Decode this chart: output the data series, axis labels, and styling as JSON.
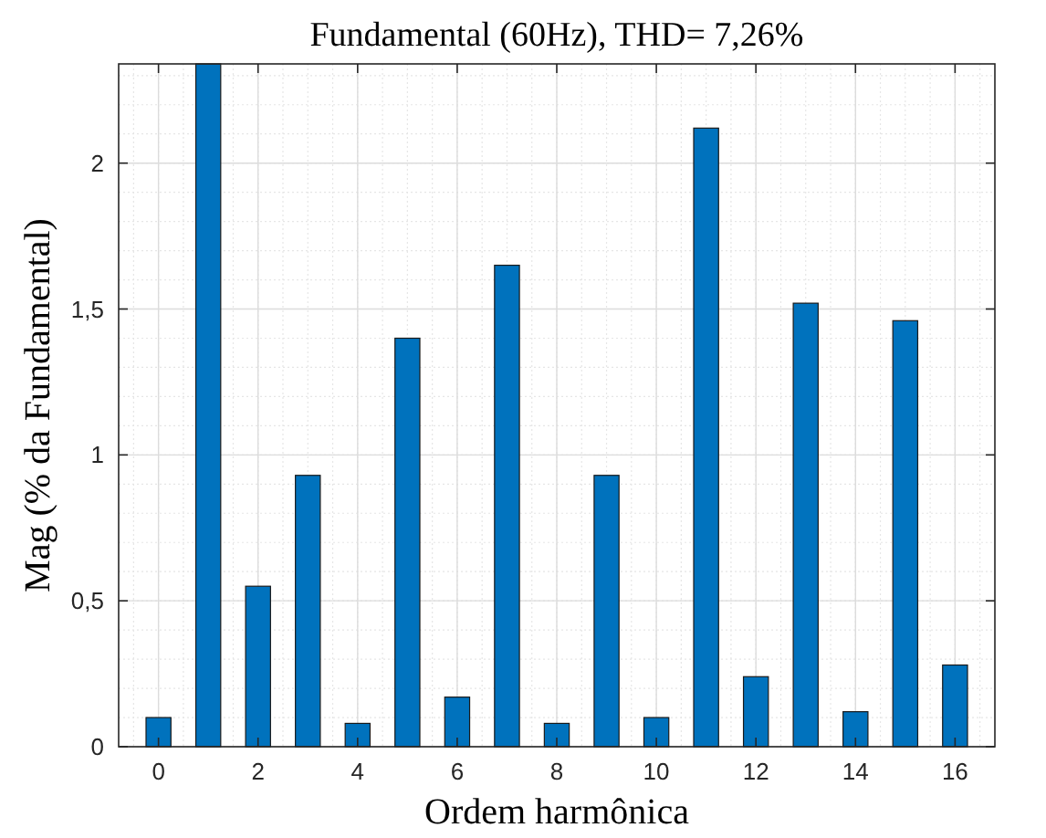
{
  "chart_data": {
    "type": "bar",
    "title": "Fundamental (60Hz), THD= 7,26%",
    "xlabel": "Ordem harmônica",
    "ylabel": "Mag (% da Fundamental)",
    "x": [
      0,
      1,
      2,
      3,
      4,
      5,
      6,
      7,
      8,
      9,
      10,
      11,
      12,
      13,
      14,
      15,
      16
    ],
    "values": [
      0.1,
      2.34,
      0.55,
      0.93,
      0.08,
      1.4,
      0.17,
      1.65,
      0.08,
      0.93,
      0.1,
      2.12,
      0.24,
      1.52,
      0.12,
      1.46,
      0.28
    ],
    "color": "#0072bd",
    "xlim": [
      -0.8,
      16.8
    ],
    "ylim": [
      0,
      2.34
    ],
    "xticks": [
      0,
      2,
      4,
      6,
      8,
      10,
      12,
      14,
      16
    ],
    "yticks": [
      0,
      {
        "value": 0.5,
        "label": "0,5"
      },
      1,
      {
        "value": 1.5,
        "label": "1,5"
      },
      2
    ],
    "grid": true
  }
}
